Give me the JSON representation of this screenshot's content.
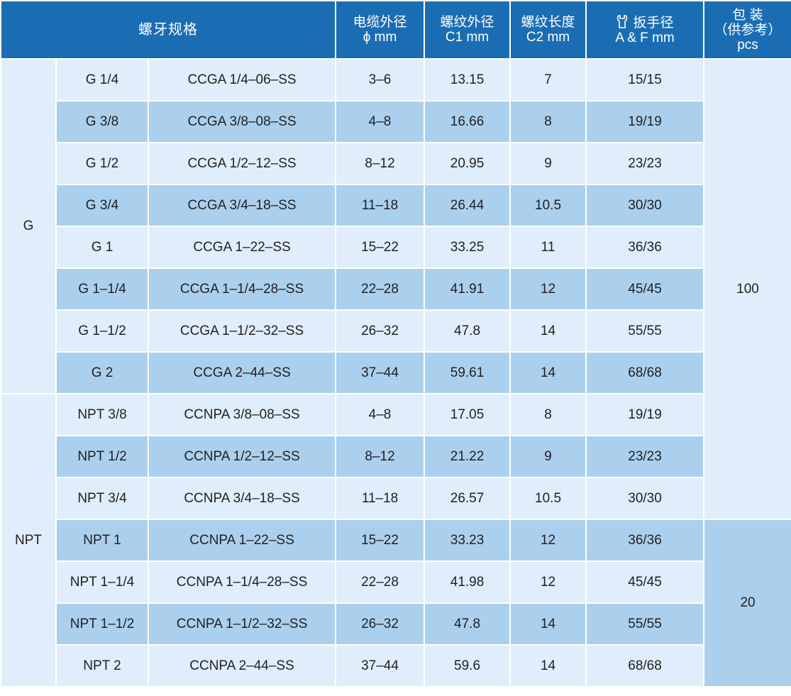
{
  "header": {
    "spec": "螺牙规格",
    "cable_od": [
      "电缆外径",
      "ϕ  mm"
    ],
    "thread_od": [
      "螺纹外径",
      "C1   mm"
    ],
    "thread_len": [
      "螺纹长度",
      "C2   mm"
    ],
    "wrench": [
      "扳手径",
      "A & F  mm"
    ],
    "wrench_icon": "wrench-icon",
    "package": [
      "包 装",
      "（供参考）",
      "pcs"
    ]
  },
  "groups": [
    {
      "label": "G",
      "rows": [
        {
          "size": "G 1/4",
          "code": "CCGA 1/4–06–SS",
          "cable": "3–6",
          "c1": "13.15",
          "c2": "7",
          "af": "15/15"
        },
        {
          "size": "G 3/8",
          "code": "CCGA 3/8–08–SS",
          "cable": "4–8",
          "c1": "16.66",
          "c2": "8",
          "af": "19/19"
        },
        {
          "size": "G 1/2",
          "code": "CCGA 1/2–12–SS",
          "cable": "8–12",
          "c1": "20.95",
          "c2": "9",
          "af": "23/23"
        },
        {
          "size": "G 3/4",
          "code": "CCGA 3/4–18–SS",
          "cable": "11–18",
          "c1": "26.44",
          "c2": "10.5",
          "af": "30/30"
        },
        {
          "size": "G 1",
          "code": "CCGA 1–22–SS",
          "cable": "15–22",
          "c1": "33.25",
          "c2": "11",
          "af": "36/36"
        },
        {
          "size": "G 1–1/4",
          "code": "CCGA 1–1/4–28–SS",
          "cable": "22–28",
          "c1": "41.91",
          "c2": "12",
          "af": "45/45"
        },
        {
          "size": "G 1–1/2",
          "code": "CCGA 1–1/2–32–SS",
          "cable": "26–32",
          "c1": "47.8",
          "c2": "14",
          "af": "55/55"
        },
        {
          "size": "G 2",
          "code": "CCGA 2–44–SS",
          "cable": "37–44",
          "c1": "59.61",
          "c2": "14",
          "af": "68/68"
        }
      ]
    },
    {
      "label": "NPT",
      "rows": [
        {
          "size": "NPT 3/8",
          "code": "CCNPA 3/8–08–SS",
          "cable": "4–8",
          "c1": "17.05",
          "c2": "8",
          "af": "19/19"
        },
        {
          "size": "NPT 1/2",
          "code": "CCNPA 1/2–12–SS",
          "cable": "8–12",
          "c1": "21.22",
          "c2": "9",
          "af": "23/23"
        },
        {
          "size": "NPT 3/4",
          "code": "CCNPA 3/4–18–SS",
          "cable": "11–18",
          "c1": "26.57",
          "c2": "10.5",
          "af": "30/30"
        },
        {
          "size": "NPT 1",
          "code": "CCNPA 1–22–SS",
          "cable": "15–22",
          "c1": "33.23",
          "c2": "12",
          "af": "36/36"
        },
        {
          "size": "NPT 1–1/4",
          "code": "CCNPA 1–1/4–28–SS",
          "cable": "22–28",
          "c1": "41.98",
          "c2": "12",
          "af": "45/45"
        },
        {
          "size": "NPT 1–1/2",
          "code": "CCNPA 1–1/2–32–SS",
          "cable": "26–32",
          "c1": "47.8",
          "c2": "14",
          "af": "55/55"
        },
        {
          "size": "NPT 2",
          "code": "CCNPA 2–44–SS",
          "cable": "37–44",
          "c1": "59.6",
          "c2": "14",
          "af": "68/68"
        }
      ]
    }
  ],
  "package": {
    "first": "100",
    "second": "20"
  },
  "colors": {
    "header": "#1b6db3",
    "row_light": "#dfeefa",
    "row_dark": "#aad0ee",
    "grid": "#ffffff"
  }
}
